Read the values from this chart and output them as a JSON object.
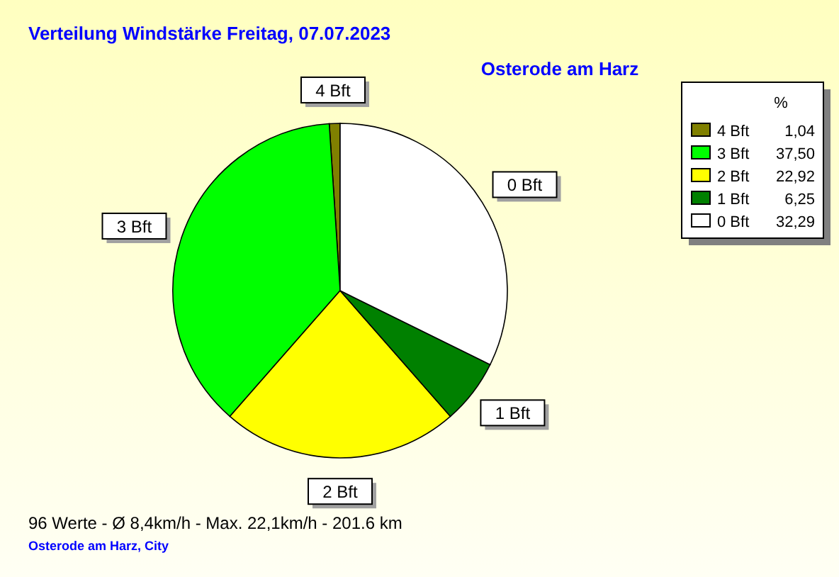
{
  "chart_data": {
    "type": "pie",
    "title": "Verteilung Windstärke  Freitag, 07.07.2023",
    "subtitle": "Osterode am Harz",
    "legend_title": "%",
    "legend": "top right",
    "categories": [
      "4 Bft",
      "3 Bft",
      "2 Bft",
      "1 Bft",
      "0 Bft"
    ],
    "values": [
      1.04,
      37.5,
      22.92,
      6.25,
      32.29
    ],
    "value_labels": [
      "1,04",
      "37,50",
      "22,92",
      "6,25",
      "32,29"
    ],
    "colors": [
      "#808000",
      "#00ff00",
      "#ffff00",
      "#008000",
      "#ffffff"
    ],
    "annotations": [
      "96 Werte   -   Ø 8,4km/h  -  Max. 22,1km/h   -   201.6 km",
      "Osterode am Harz, City"
    ]
  }
}
